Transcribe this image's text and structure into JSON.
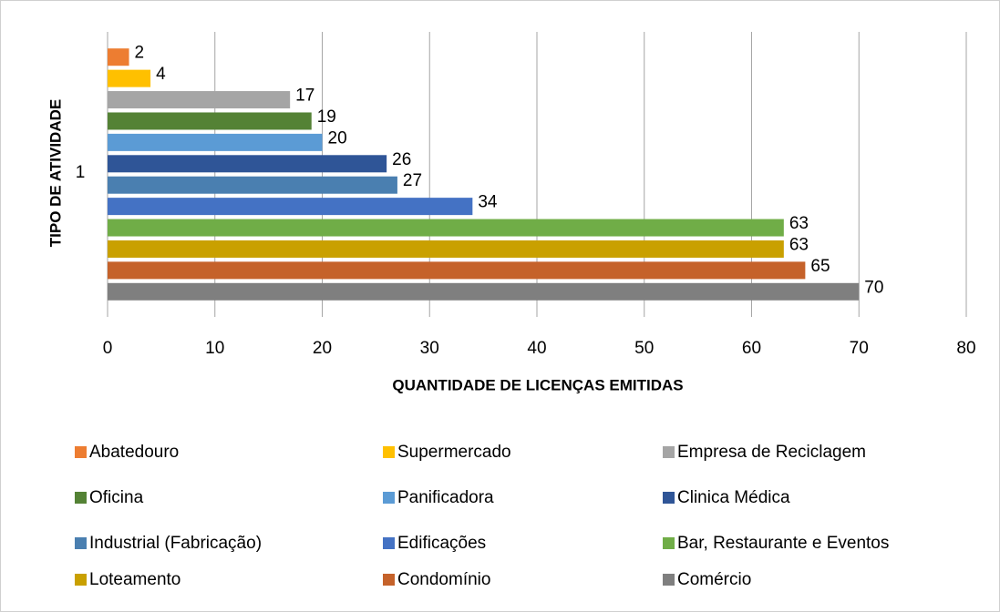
{
  "chart_data": {
    "type": "bar",
    "orientation": "horizontal",
    "categories": [
      "1"
    ],
    "x_label": "QUANTIDADE DE LICENÇAS EMITIDAS",
    "y_label": "TIPO DE ATIVIDADE",
    "xlim": [
      0,
      80
    ],
    "xticks": [
      0,
      10,
      20,
      30,
      40,
      50,
      60,
      70,
      80
    ],
    "grid": true,
    "legend": "bottom",
    "series": [
      {
        "name": "Abatedouro",
        "color": "#ed7d31",
        "values": [
          2
        ]
      },
      {
        "name": "Supermercado",
        "color": "#ffc000",
        "values": [
          4
        ]
      },
      {
        "name": "Empresa de Reciclagem",
        "color": "#a5a5a5",
        "values": [
          17
        ]
      },
      {
        "name": "Oficina",
        "color": "#548235",
        "values": [
          19
        ]
      },
      {
        "name": "Panificadora",
        "color": "#5b9bd5",
        "values": [
          20
        ]
      },
      {
        "name": "Clinica Médica",
        "color": "#2f5597",
        "values": [
          26
        ]
      },
      {
        "name": "Industrial (Fabricação)",
        "color": "#4a7fb0",
        "values": [
          27
        ]
      },
      {
        "name": "Edificações",
        "color": "#4472c4",
        "values": [
          34
        ]
      },
      {
        "name": "Bar, Restaurante e Eventos",
        "color": "#70ad47",
        "values": [
          63
        ]
      },
      {
        "name": "Loteamento",
        "color": "#c9a000",
        "values": [
          63
        ]
      },
      {
        "name": "Condomínio",
        "color": "#c5622a",
        "values": [
          65
        ]
      },
      {
        "name": "Comércio",
        "color": "#7f7f7f",
        "values": [
          70
        ]
      }
    ]
  }
}
